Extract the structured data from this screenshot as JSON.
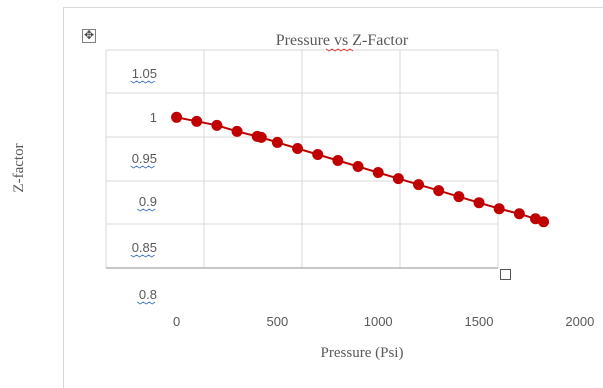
{
  "document": {
    "move_handle_icon": "move-arrows-icon",
    "resize_handle_icon": "resize-handle-icon"
  },
  "chart_data": {
    "type": "scatter",
    "title": "Pressure vs Z-Factor",
    "xlabel": "Pressure (Psi)",
    "ylabel": "Z-factor",
    "x_ticks": [
      "0",
      "500",
      "1000",
      "1500",
      "2000"
    ],
    "y_ticks": [
      "1.05",
      "1",
      "0.95",
      "0.9",
      "0.85",
      "0.8"
    ],
    "xlim": [
      -350,
      2100
    ],
    "ylim": [
      0.85,
      1.067
    ],
    "grid": true,
    "legend": "none",
    "series": [
      {
        "color": "#c00000",
        "marker": "circle",
        "line": true,
        "x": [
          0,
          100,
          200,
          300,
          400,
          420,
          500,
          600,
          700,
          800,
          900,
          1000,
          1100,
          1200,
          1300,
          1400,
          1500,
          1600,
          1700,
          1780,
          1820
        ],
        "y": [
          1.0,
          0.996,
          0.992,
          0.986,
          0.981,
          0.98,
          0.975,
          0.969,
          0.963,
          0.957,
          0.951,
          0.945,
          0.939,
          0.933,
          0.927,
          0.921,
          0.915,
          0.909,
          0.904,
          0.899,
          0.896
        ]
      }
    ]
  }
}
